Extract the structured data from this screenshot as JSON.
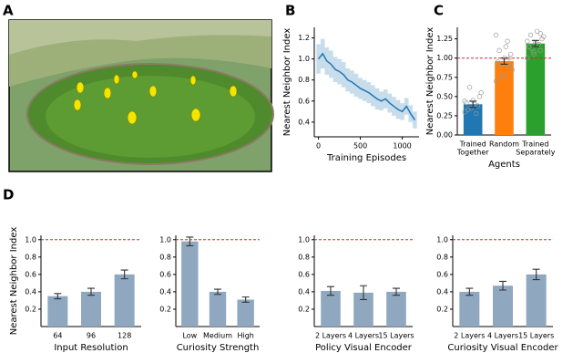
{
  "panels": [
    "A",
    "B",
    "C",
    "D"
  ],
  "chart_data": [
    {
      "type": "line",
      "ylabel": "Nearest Neighbor Index",
      "xlabel": "Training Episodes",
      "color": "#1f77b4",
      "x": [
        0,
        50,
        100,
        150,
        200,
        250,
        300,
        350,
        400,
        450,
        500,
        550,
        600,
        650,
        700,
        750,
        800,
        850,
        900,
        950,
        1000,
        1050,
        1100,
        1150
      ],
      "values": [
        1.0,
        1.05,
        0.98,
        0.95,
        0.9,
        0.88,
        0.85,
        0.8,
        0.78,
        0.75,
        0.72,
        0.7,
        0.68,
        0.65,
        0.62,
        0.6,
        0.62,
        0.58,
        0.55,
        0.52,
        0.5,
        0.55,
        0.48,
        0.42
      ],
      "errors": [
        0.14,
        0.14,
        0.13,
        0.13,
        0.12,
        0.12,
        0.12,
        0.11,
        0.11,
        0.11,
        0.1,
        0.1,
        0.1,
        0.1,
        0.1,
        0.09,
        0.09,
        0.09,
        0.09,
        0.09,
        0.08,
        0.08,
        0.08,
        0.08
      ],
      "xlim": [
        -50,
        1200
      ],
      "xticks": [
        0,
        500,
        1000
      ],
      "ylim": [
        0.26,
        1.3
      ],
      "yticks": [
        0.4,
        0.6,
        0.8,
        {
          "value": 1,
          "label": "1.0"
        },
        1.2
      ]
    },
    {
      "type": "bar",
      "ylabel": "Nearest Neighbor Index",
      "xlabel": "Agents",
      "categories": [
        [
          "Trained",
          "Together"
        ],
        [
          "Random"
        ],
        [
          "Trained",
          "Separately"
        ]
      ],
      "values": [
        0.4,
        0.96,
        1.19
      ],
      "errors": [
        0.04,
        0.04,
        0.04
      ],
      "colors": [
        "#1f77b4",
        "#ff7f0e",
        "#2ca02c"
      ],
      "points": [
        [
          0.3,
          0.35,
          0.38,
          0.42,
          0.45,
          0.5,
          0.33,
          0.4,
          0.55,
          0.62,
          0.28,
          0.44
        ],
        [
          0.7,
          0.8,
          0.9,
          0.95,
          1.0,
          1.05,
          1.1,
          1.15,
          0.85,
          0.92,
          1.22,
          1.3,
          0.75,
          1.0
        ],
        [
          1.0,
          1.05,
          1.1,
          1.15,
          1.2,
          1.25,
          1.3,
          1.35,
          1.28,
          1.12,
          1.18,
          1.22,
          1.08,
          1.32
        ]
      ],
      "ref_line": 1.0,
      "ref_color": "#d62728",
      "ylim": [
        0,
        1.4
      ],
      "yticks": [
        {
          "value": 0,
          "label": "0.00"
        },
        0.25,
        {
          "value": 0.5,
          "label": "0.50"
        },
        0.75,
        {
          "value": 1,
          "label": "1.00"
        },
        1.25
      ]
    },
    {
      "type": "bar",
      "ylabel": "Nearest Neighbor Index",
      "xlabel": "Input Resolution",
      "categories": [
        [
          "64"
        ],
        [
          "96"
        ],
        [
          "128"
        ]
      ],
      "values": [
        0.35,
        0.4,
        0.6
      ],
      "errors": [
        0.03,
        0.04,
        0.05
      ],
      "color": "#8fa8c0",
      "ref_line": 1.0,
      "ref_color": "#d62728",
      "ylim": [
        0,
        1.05
      ],
      "yticks": [
        0.2,
        0.4,
        0.6,
        0.8,
        {
          "value": 1,
          "label": "1.0"
        }
      ]
    },
    {
      "type": "bar",
      "xlabel": "Curiosity Strength",
      "categories": [
        [
          "Low"
        ],
        [
          "Medium"
        ],
        [
          "High"
        ]
      ],
      "values": [
        0.98,
        0.4,
        0.31
      ],
      "errors": [
        0.05,
        0.03,
        0.03
      ],
      "color": "#8fa8c0",
      "ref_line": 1.0,
      "ref_color": "#d62728",
      "ylim": [
        0,
        1.05
      ],
      "yticks": [
        0.2,
        0.4,
        0.6,
        0.8,
        {
          "value": 1,
          "label": "1.0"
        }
      ]
    },
    {
      "type": "bar",
      "xlabel": "Policy Visual Encoder",
      "categories": [
        [
          "2 Layers"
        ],
        [
          "4 Layers"
        ],
        [
          "15 Layers"
        ]
      ],
      "values": [
        0.41,
        0.39,
        0.4
      ],
      "errors": [
        0.05,
        0.08,
        0.04
      ],
      "color": "#8fa8c0",
      "ref_line": 1.0,
      "ref_color": "#d62728",
      "ylim": [
        0,
        1.05
      ],
      "yticks": [
        0.2,
        0.4,
        0.6,
        0.8,
        {
          "value": 1,
          "label": "1.0"
        }
      ]
    },
    {
      "type": "bar",
      "xlabel": "Curiosity Visual Encoder",
      "categories": [
        [
          "2 Layers"
        ],
        [
          "4 Layers"
        ],
        [
          "15 Layers"
        ]
      ],
      "values": [
        0.4,
        0.47,
        0.6
      ],
      "errors": [
        0.04,
        0.05,
        0.06
      ],
      "color": "#8fa8c0",
      "ref_line": 1.0,
      "ref_color": "#d62728",
      "ylim": [
        0,
        1.05
      ],
      "yticks": [
        0.2,
        0.4,
        0.6,
        0.8,
        {
          "value": 1,
          "label": "1.0"
        }
      ]
    }
  ]
}
